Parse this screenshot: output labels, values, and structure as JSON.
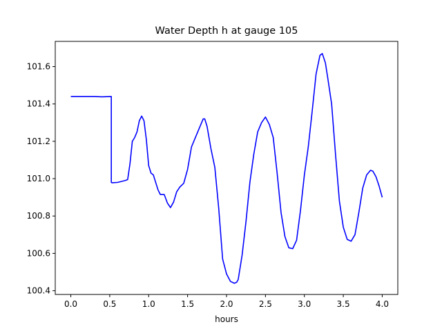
{
  "chart_data": {
    "type": "line",
    "title": "Water Depth h at gauge 105",
    "xlabel": "hours",
    "ylabel": "",
    "xlim": [
      -0.2,
      4.2
    ],
    "ylim": [
      100.38,
      101.735
    ],
    "xticks": [
      0.0,
      0.5,
      1.0,
      1.5,
      2.0,
      2.5,
      3.0,
      3.5,
      4.0
    ],
    "xtick_labels": [
      "0.0",
      "0.5",
      "1.0",
      "1.5",
      "2.0",
      "2.5",
      "3.0",
      "3.5",
      "4.0"
    ],
    "yticks": [
      100.4,
      100.6,
      100.8,
      101.0,
      101.2,
      101.4,
      101.6
    ],
    "ytick_labels": [
      "100.4",
      "100.6",
      "100.8",
      "101.0",
      "101.2",
      "101.4",
      "101.6"
    ],
    "grid": false,
    "series": [
      {
        "color": "#0000ff",
        "x": [
          0.0,
          0.3,
          0.4,
          0.52,
          0.52,
          0.53,
          0.6,
          0.65,
          0.7,
          0.73,
          0.76,
          0.79,
          0.82,
          0.85,
          0.88,
          0.91,
          0.94,
          0.97,
          1.0,
          1.03,
          1.06,
          1.09,
          1.12,
          1.15,
          1.2,
          1.24,
          1.28,
          1.32,
          1.36,
          1.4,
          1.45,
          1.5,
          1.55,
          1.6,
          1.65,
          1.7,
          1.72,
          1.75,
          1.8,
          1.85,
          1.9,
          1.95,
          2.0,
          2.05,
          2.1,
          2.13,
          2.15,
          2.2,
          2.25,
          2.3,
          2.35,
          2.4,
          2.45,
          2.5,
          2.55,
          2.6,
          2.65,
          2.7,
          2.75,
          2.8,
          2.85,
          2.9,
          2.95,
          3.0,
          3.05,
          3.1,
          3.15,
          3.2,
          3.23,
          3.27,
          3.3,
          3.35,
          3.4,
          3.45,
          3.5,
          3.55,
          3.6,
          3.65,
          3.7,
          3.75,
          3.8,
          3.85,
          3.88,
          3.92,
          3.96,
          4.0
        ],
        "y": [
          101.44,
          101.44,
          101.438,
          101.44,
          100.98,
          100.978,
          100.98,
          100.985,
          100.99,
          100.995,
          101.08,
          101.2,
          101.22,
          101.25,
          101.31,
          101.335,
          101.31,
          101.21,
          101.07,
          101.03,
          101.02,
          100.98,
          100.94,
          100.915,
          100.915,
          100.87,
          100.845,
          100.875,
          100.93,
          100.955,
          100.975,
          101.05,
          101.17,
          101.22,
          101.27,
          101.32,
          101.32,
          101.28,
          101.16,
          101.06,
          100.84,
          100.57,
          100.49,
          100.45,
          100.44,
          100.445,
          100.46,
          100.59,
          100.77,
          100.98,
          101.13,
          101.25,
          101.3,
          101.33,
          101.29,
          101.22,
          101.03,
          100.82,
          100.69,
          100.63,
          100.625,
          100.67,
          100.83,
          101.02,
          101.17,
          101.36,
          101.56,
          101.66,
          101.67,
          101.62,
          101.54,
          101.4,
          101.13,
          100.88,
          100.74,
          100.675,
          100.665,
          100.7,
          100.82,
          100.95,
          101.02,
          101.045,
          101.04,
          101.01,
          100.96,
          100.9
        ]
      }
    ]
  }
}
